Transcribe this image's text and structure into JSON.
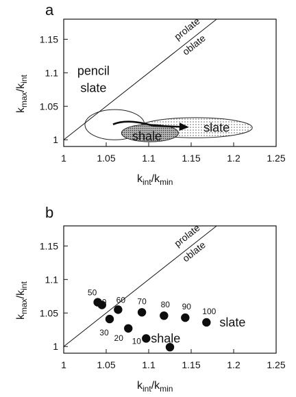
{
  "chart_data": [
    {
      "panel": "a",
      "type": "scatter",
      "xlabel": {
        "main": "k",
        "sub": "int",
        "sep": "/k",
        "sub2": "min"
      },
      "ylabel": {
        "main": "k",
        "sub": "max",
        "sep": "/k",
        "sub2": "int"
      },
      "xlim": [
        1,
        1.25
      ],
      "ylim": [
        0.99,
        1.18
      ],
      "xticks": [
        "1",
        "1.05",
        "1.1",
        "1.15",
        "1.2",
        "1.25"
      ],
      "yticks": [
        "1",
        "1.05",
        "1.1",
        "1.15"
      ],
      "reference_line": {
        "from": [
          1,
          1
        ],
        "to": [
          1.18,
          1.18
        ],
        "label_above": "prolate",
        "label_below": "oblate"
      },
      "regions": [
        {
          "name": "pencil slate",
          "label_lines": [
            "pencil",
            "slate"
          ],
          "x": [
            1.025,
            1.095
          ],
          "y": [
            1.0,
            1.045
          ],
          "fill": "none"
        },
        {
          "name": "slate",
          "label": "slate",
          "x": [
            1.088,
            1.222
          ],
          "y": [
            1.003,
            1.033
          ],
          "fill": "dotted-light"
        },
        {
          "name": "shale",
          "label": "shale",
          "x": [
            1.068,
            1.135
          ],
          "y": [
            0.997,
            1.023
          ],
          "fill": "dotted-dense"
        }
      ],
      "trend_arrow": [
        [
          1.058,
          1.023
        ],
        [
          1.075,
          1.032
        ],
        [
          1.105,
          1.021
        ],
        [
          1.145,
          1.019
        ]
      ]
    },
    {
      "panel": "b",
      "type": "scatter",
      "xlabel": {
        "main": "k",
        "sub": "int",
        "sep": "/k",
        "sub2": "min"
      },
      "ylabel": {
        "main": "k",
        "sub": "max",
        "sep": "/k",
        "sub2": "int"
      },
      "xlim": [
        1,
        1.25
      ],
      "ylim": [
        0.99,
        1.18
      ],
      "xticks": [
        "1",
        "1.05",
        "1.1",
        "1.15",
        "1.2",
        "1.25"
      ],
      "yticks": [
        "1",
        "1.05",
        "1.1",
        "1.15"
      ],
      "reference_line": {
        "from": [
          1,
          1
        ],
        "to": [
          1.18,
          1.18
        ],
        "label_above": "prolate",
        "label_below": "oblate"
      },
      "points": [
        {
          "label": "10",
          "x": 1.097,
          "y": 1.012
        },
        {
          "label": "20",
          "x": 1.076,
          "y": 1.027
        },
        {
          "label": "30",
          "x": 1.054,
          "y": 1.041
        },
        {
          "label": "40",
          "x": 1.045,
          "y": 1.062
        },
        {
          "label": "50",
          "x": 1.04,
          "y": 1.066
        },
        {
          "label": "60",
          "x": 1.064,
          "y": 1.055
        },
        {
          "label": "70",
          "x": 1.092,
          "y": 1.051
        },
        {
          "label": "80",
          "x": 1.118,
          "y": 1.046
        },
        {
          "label": "90",
          "x": 1.143,
          "y": 1.043
        },
        {
          "label": "100",
          "x": 1.168,
          "y": 1.036
        },
        {
          "label": "",
          "x": 1.125,
          "y": 0.999
        }
      ],
      "annotations": [
        {
          "text": "slate",
          "x": 1.21,
          "y": 1.03
        },
        {
          "text": "shale",
          "x": 1.12,
          "y": 1.012
        }
      ]
    }
  ],
  "colors": {
    "ink": "#111111",
    "dot_fill": "#c9c9c9",
    "marker": "#0d0d0d"
  }
}
